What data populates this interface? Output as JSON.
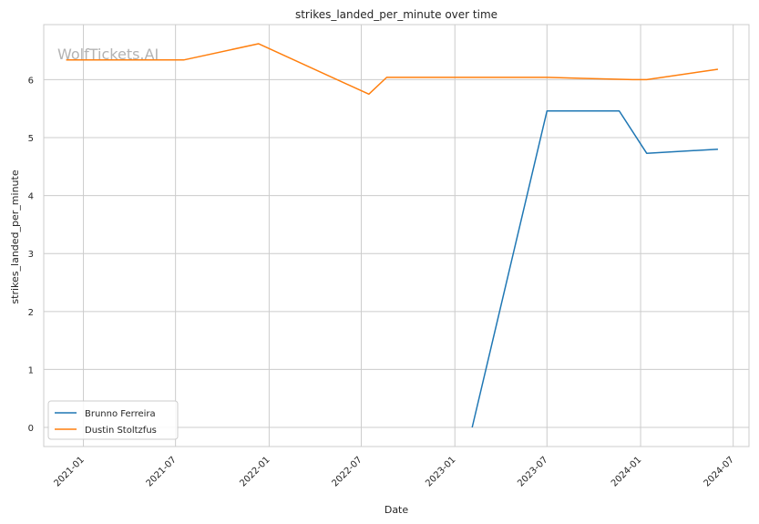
{
  "chart_data": {
    "type": "line",
    "title": "strikes_landed_per_minute over time",
    "xlabel": "Date",
    "ylabel": "strikes_landed_per_minute",
    "watermark": "WolfTickets.AI",
    "xlim": [
      "2020-10-15",
      "2024-08-01"
    ],
    "ylim": [
      -0.33,
      6.95
    ],
    "grid": true,
    "legend_position": "lower-left",
    "x_ticks": [
      "2021-01",
      "2021-07",
      "2022-01",
      "2022-07",
      "2023-01",
      "2023-07",
      "2024-01",
      "2024-07"
    ],
    "y_ticks": [
      "0",
      "1",
      "2",
      "3",
      "4",
      "5",
      "6"
    ],
    "series": [
      {
        "name": "Brunno Ferreira",
        "color": "#1f77b4",
        "points": [
          {
            "x": "2023-02-04",
            "y": 0.0
          },
          {
            "x": "2023-07-01",
            "y": 5.46
          },
          {
            "x": "2023-11-20",
            "y": 5.46
          },
          {
            "x": "2024-01-13",
            "y": 4.73
          },
          {
            "x": "2024-06-01",
            "y": 4.8
          }
        ]
      },
      {
        "name": "Dustin Stoltzfus",
        "color": "#ff7f0e",
        "points": [
          {
            "x": "2020-11-28",
            "y": 6.34
          },
          {
            "x": "2021-07-17",
            "y": 6.34
          },
          {
            "x": "2021-12-11",
            "y": 6.62
          },
          {
            "x": "2022-07-16",
            "y": 5.75
          },
          {
            "x": "2022-08-20",
            "y": 6.04
          },
          {
            "x": "2023-07-01",
            "y": 6.04
          },
          {
            "x": "2023-12-16",
            "y": 6.0
          },
          {
            "x": "2024-01-13",
            "y": 6.0
          },
          {
            "x": "2024-06-01",
            "y": 6.18
          }
        ]
      }
    ]
  }
}
